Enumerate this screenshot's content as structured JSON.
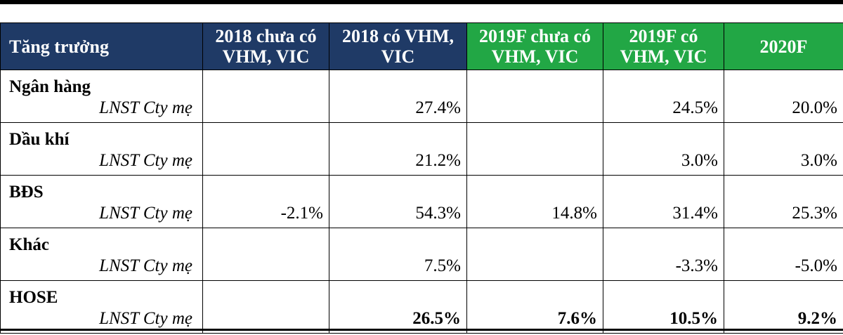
{
  "table": {
    "headers": [
      {
        "text": "Tăng trưởng",
        "color": "#1f3a66"
      },
      {
        "text": "2018 chưa có VHM, VIC",
        "color": "#1f3a66"
      },
      {
        "text": "2018 có VHM, VIC",
        "color": "#1f3a66"
      },
      {
        "text": "2019F chưa có VHM, VIC",
        "color": "#22a745"
      },
      {
        "text": "2019F có VHM, VIC",
        "color": "#22a745"
      },
      {
        "text": "2020F",
        "color": "#22a745"
      }
    ],
    "rows": [
      {
        "sector": "Ngân hàng",
        "metric": "LNST Cty mẹ",
        "values": [
          "",
          "27.4%",
          "",
          "24.5%",
          "20.0%"
        ]
      },
      {
        "sector": "Dầu khí",
        "metric": "LNST Cty mẹ",
        "values": [
          "",
          "21.2%",
          "",
          "3.0%",
          "3.0%"
        ]
      },
      {
        "sector": "BĐS",
        "metric": "LNST Cty mẹ",
        "values": [
          "-2.1%",
          "54.3%",
          "14.8%",
          "31.4%",
          "25.3%"
        ]
      },
      {
        "sector": "Khác",
        "metric": "LNST Cty mẹ",
        "values": [
          "",
          "7.5%",
          "",
          "-3.3%",
          "-5.0%"
        ]
      },
      {
        "sector": "HOSE",
        "metric": "LNST Cty mẹ",
        "values": [
          "",
          "26.5%",
          "7.6%",
          "10.5%",
          "9.2%"
        ]
      }
    ]
  }
}
